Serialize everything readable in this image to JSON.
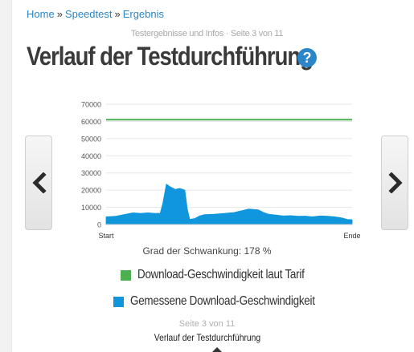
{
  "breadcrumb": {
    "items": [
      "Home",
      "Speedtest",
      "Ergebnis"
    ],
    "separator": "»"
  },
  "kicker": "Testergebnisse und Infos · Seite 3 von 11",
  "page_title": "Verlauf der Testdurchführung",
  "help_icon": {
    "glyph": "?",
    "icon": "help-icon"
  },
  "nav": {
    "prev_icon": "chevron-left-icon",
    "next_icon": "chevron-right-icon"
  },
  "chart_data": {
    "type": "area",
    "title": "",
    "xlabel": "",
    "ylabel": "",
    "x_tick_labels": [
      "Start",
      "Ende"
    ],
    "y_ticks": [
      "0",
      "10000",
      "20000",
      "30000",
      "40000",
      "50000",
      "60000",
      "70000"
    ],
    "ylim": [
      0,
      70000
    ],
    "xlim": [
      0,
      100
    ],
    "grid": true,
    "series": [
      {
        "name": "Download-Geschwindigkeit laut Tarif",
        "type": "line",
        "color": "#4caf50",
        "x": [
          0,
          100
        ],
        "values": [
          61000,
          61000
        ]
      },
      {
        "name": "Gemessene Download-Geschwindigkeit",
        "type": "area",
        "color": "#0f96dc",
        "x": [
          0,
          4,
          8,
          11,
          14,
          17,
          20,
          22,
          23,
          24.5,
          26,
          28,
          30,
          32,
          33,
          34,
          36,
          38,
          40,
          44,
          48,
          52,
          55,
          58,
          62,
          64,
          66,
          69,
          72,
          75,
          78,
          81,
          84,
          87,
          90,
          93,
          96,
          98,
          100
        ],
        "values": [
          4500,
          4800,
          6000,
          6800,
          6500,
          6800,
          6500,
          6600,
          12000,
          23500,
          22000,
          20500,
          21000,
          20000,
          9000,
          3000,
          3500,
          5000,
          5800,
          6000,
          6500,
          7000,
          8000,
          9000,
          8500,
          7000,
          6000,
          5500,
          5000,
          5200,
          4800,
          4900,
          4500,
          5000,
          4800,
          4500,
          3800,
          3000,
          2800
        ]
      }
    ],
    "annotation": "Grad der Schwankung: 178 %"
  },
  "legend": [
    {
      "label": "Download-Geschwindigkeit laut Tarif",
      "color": "#4caf50"
    },
    {
      "label": "Gemessene Download-Geschwindigkeit",
      "color": "#0f96dc"
    }
  ],
  "footer": {
    "page": "Seite 3 von 11",
    "title": "Verlauf der Testdurchführung"
  },
  "colors": {
    "link": "#2a86c8",
    "grid": "#e6e6e6",
    "axis": "#cccccc"
  }
}
